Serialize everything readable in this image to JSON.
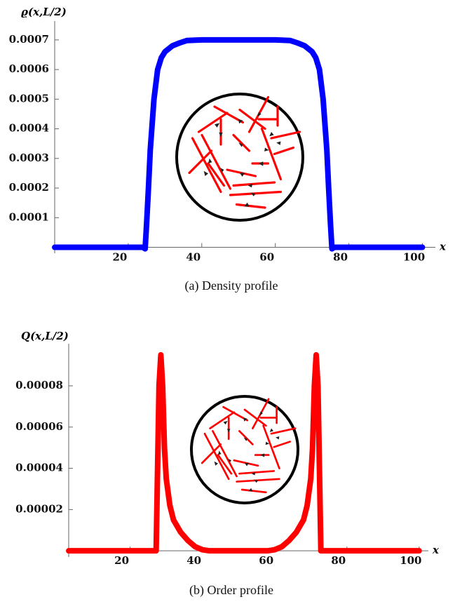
{
  "chart_data": [
    {
      "type": "line",
      "y_label": "ϱ(x,L/2)",
      "x_label": "x",
      "caption": "(a) Density profile",
      "x": [
        0,
        10,
        20,
        24,
        24.6,
        25,
        25.5,
        26,
        27,
        28,
        29,
        30,
        32,
        34,
        36,
        40,
        50,
        60,
        64,
        66,
        68,
        70,
        71,
        72,
        73,
        74,
        74.5,
        75,
        75.4,
        76,
        80,
        90,
        100
      ],
      "series": [
        {
          "color": "#0000ff",
          "values": [
            0,
            0,
            0,
            0,
            -5e-06,
            8e-05,
            0.0002,
            0.00033,
            0.0005,
            0.0006,
            0.00064,
            0.00066,
            0.00068,
            0.00069,
            0.000698,
            0.0007,
            0.0007,
            0.0007,
            0.000698,
            0.00069,
            0.00068,
            0.00066,
            0.00064,
            0.0006,
            0.0005,
            0.00033,
            0.0002,
            8e-05,
            -5e-06,
            0,
            0,
            0,
            0
          ]
        }
      ],
      "xlim": [
        0,
        102
      ],
      "ylim": [
        -2e-05,
        0.00074
      ],
      "xticks": [
        20,
        40,
        60,
        80,
        100
      ],
      "yticks": [
        0.0001,
        0.0002,
        0.0003,
        0.0004,
        0.0005,
        0.0006,
        0.0007
      ]
    },
    {
      "type": "line",
      "y_label": "Q(x,L/2)",
      "x_label": "x",
      "caption": "(b) Order profile",
      "x": [
        3,
        10,
        20,
        26,
        27.2,
        27.6,
        28,
        28.5,
        29,
        29.5,
        30,
        31,
        32,
        34,
        36,
        38,
        40,
        42,
        44,
        56,
        58,
        60,
        62,
        64,
        66,
        68,
        69,
        70,
        70.5,
        71,
        71.5,
        72,
        72.4,
        72.8,
        74,
        80,
        90,
        100
      ],
      "series": [
        {
          "color": "#ff0000",
          "values": [
            0,
            0,
            0,
            0,
            0,
            4e-05,
            8e-05,
            9.5e-05,
            8e-05,
            5e-05,
            3.5e-05,
            2.2e-05,
            1.5e-05,
            9e-06,
            5e-06,
            2e-06,
            5e-07,
            0,
            0,
            0,
            0,
            5e-07,
            2e-06,
            5e-06,
            9e-06,
            1.5e-05,
            2.2e-05,
            3.5e-05,
            5e-05,
            8e-05,
            9.5e-05,
            8e-05,
            4e-05,
            0,
            0,
            0,
            0,
            0
          ]
        }
      ],
      "xlim": [
        3,
        101
      ],
      "ylim": [
        -3e-06,
        9.7e-05
      ],
      "xticks": [
        20,
        40,
        60,
        80,
        100
      ],
      "yticks": [
        2e-05,
        4e-05,
        6e-05,
        8e-05
      ]
    }
  ]
}
